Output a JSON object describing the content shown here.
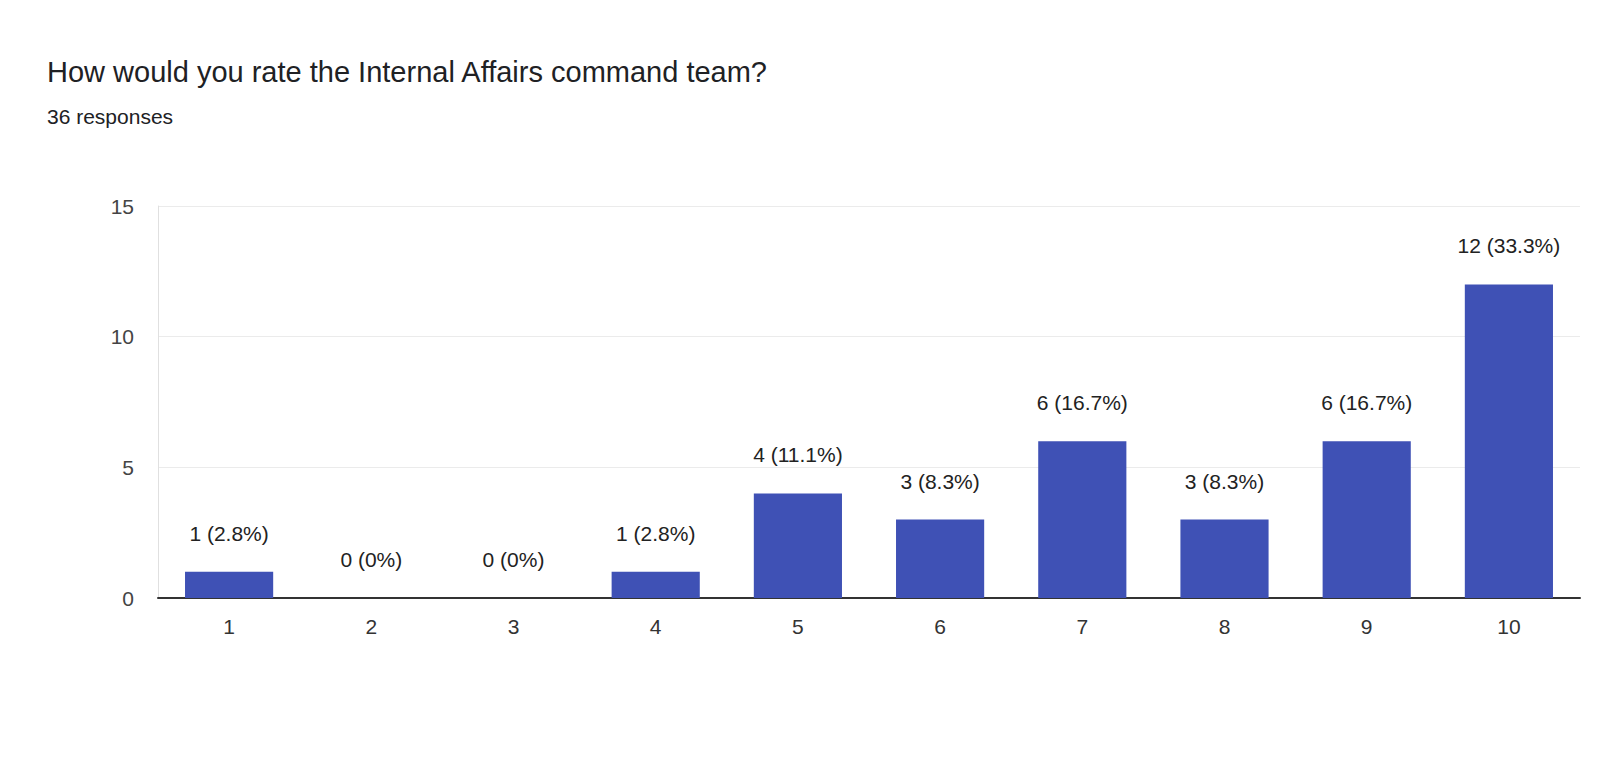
{
  "chart_data": {
    "type": "bar",
    "title": "How would you rate the Internal Affairs command team?",
    "subtitle": "36 responses",
    "categories": [
      "1",
      "2",
      "3",
      "4",
      "5",
      "6",
      "7",
      "8",
      "9",
      "10"
    ],
    "values": [
      1,
      0,
      0,
      1,
      4,
      3,
      6,
      3,
      6,
      12
    ],
    "value_labels": [
      "1 (2.8%)",
      "0 (0%)",
      "0 (0%)",
      "1 (2.8%)",
      "4 (11.1%)",
      "3 (8.3%)",
      "6 (16.7%)",
      "3 (8.3%)",
      "6 (16.7%)",
      "12 (33.3%)"
    ],
    "color": "#3f51b5",
    "ylim": [
      0,
      15
    ],
    "yticks": [
      0,
      5,
      10,
      15
    ],
    "grid": true,
    "data_labels": true
  }
}
